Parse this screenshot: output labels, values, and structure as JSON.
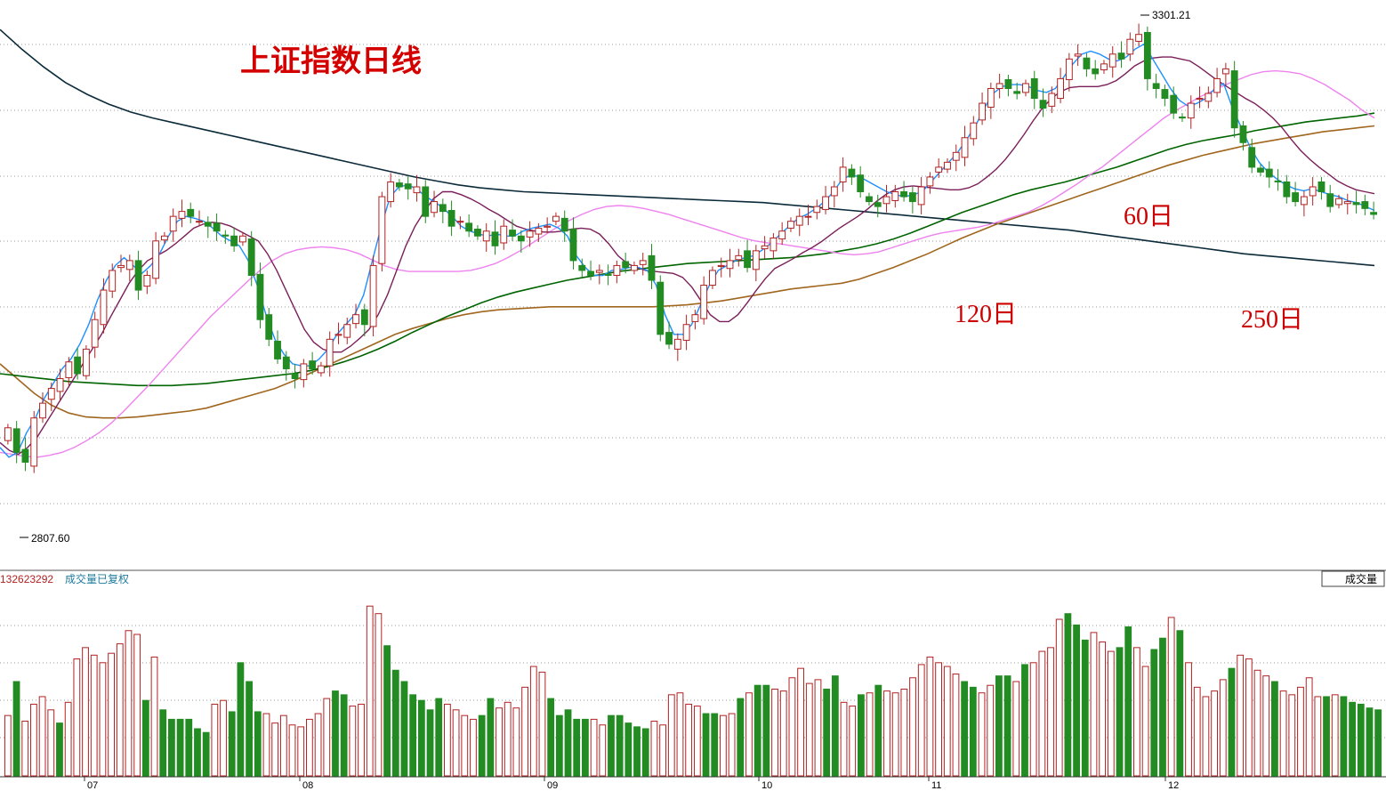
{
  "title": "上证指数日线",
  "volume_panel": {
    "value_readout": "132623292",
    "label": "成交量已复权",
    "button_label": "成交量"
  },
  "colors": {
    "up": "#b22222",
    "down": "#228b22",
    "ma5": "#1e90ff",
    "ma10": "#7b1f5a",
    "ma20": "#ee82ee",
    "ma60": "#006400",
    "ma120": "#a0661e",
    "ma250": "#0b2a3a",
    "annotation": "#cc0000"
  },
  "chart_data": {
    "type": "candlestick",
    "title": "上证指数日线",
    "x_ticks": [
      "07",
      "08",
      "09",
      "10",
      "11",
      "12"
    ],
    "ylim": [
      2760,
      3330
    ],
    "high_marker": {
      "label": "3301.21",
      "value": 3301.21
    },
    "low_marker": {
      "label": "2807.60",
      "value": 2807.6
    },
    "ma_labels": [
      {
        "text": "60日",
        "series": "ma60"
      },
      {
        "text": "120日",
        "series": "ma120"
      },
      {
        "text": "250日",
        "series": "ma250"
      }
    ],
    "candles_close": [
      2895,
      2870,
      2860,
      2905,
      2920,
      2935,
      2945,
      2962,
      2950,
      2975,
      3005,
      3035,
      3055,
      3060,
      3065,
      3035,
      3050,
      3085,
      3090,
      3110,
      3115,
      3110,
      3105,
      3100,
      3095,
      3090,
      3080,
      3090,
      3050,
      3005,
      2985,
      2965,
      2955,
      2945,
      2960,
      2955,
      2958,
      2985,
      2990,
      3000,
      3010,
      3000,
      3060,
      3130,
      3145,
      3140,
      3138,
      3140,
      3110,
      3125,
      3115,
      3100,
      3105,
      3095,
      3090,
      3095,
      3080,
      3100,
      3090,
      3085,
      3095,
      3098,
      3100,
      3110,
      3095,
      3065,
      3055,
      3050,
      3055,
      3050,
      3060,
      3058,
      3060,
      3065,
      3045,
      2990,
      2980,
      2985,
      3000,
      3010,
      3040,
      3055,
      3060,
      3065,
      3070,
      3058,
      3075,
      3080,
      3088,
      3095,
      3105,
      3110,
      3110,
      3120,
      3130,
      3140,
      3160,
      3150,
      3135,
      3125,
      3120,
      3130,
      3135,
      3130,
      3125,
      3140,
      3150,
      3160,
      3165,
      3175,
      3190,
      3205,
      3225,
      3240,
      3245,
      3240,
      3235,
      3245,
      3230,
      3220,
      3235,
      3250,
      3270,
      3275,
      3260,
      3255,
      3265,
      3275,
      3270,
      3290,
      3295,
      3250,
      3240,
      3230,
      3215,
      3210,
      3225,
      3230,
      3235,
      3250,
      3260,
      3200,
      3185,
      3160,
      3155,
      3150,
      3145,
      3130,
      3125,
      3130,
      3140,
      3135,
      3120,
      3128,
      3125,
      3122,
      3118,
      3112
    ],
    "ma5": [
      2875,
      2865,
      2870,
      2890,
      2905,
      2925,
      2940,
      2955,
      2965,
      2980,
      3000,
      3025,
      3045,
      3060,
      3068,
      3060,
      3052,
      3060,
      3072,
      3090,
      3105,
      3110,
      3108,
      3105,
      3098,
      3090,
      3085,
      3080,
      3065,
      3040,
      3010,
      2985,
      2970,
      2960,
      2958,
      2958,
      2965,
      2975,
      2990,
      3000,
      3010,
      3030,
      3065,
      3100,
      3130,
      3140,
      3142,
      3138,
      3130,
      3125,
      3118,
      3110,
      3100,
      3095,
      3092,
      3090,
      3092,
      3090,
      3090,
      3095,
      3098,
      3100,
      3102,
      3098,
      3090,
      3070,
      3058,
      3050,
      3050,
      3055,
      3056,
      3058,
      3058,
      3055,
      3040,
      3010,
      2990,
      2990,
      3000,
      3020,
      3040,
      3055,
      3060,
      3065,
      3068,
      3070,
      3076,
      3083,
      3092,
      3100,
      3108,
      3112,
      3118,
      3125,
      3135,
      3148,
      3152,
      3150,
      3145,
      3140,
      3135,
      3132,
      3130,
      3132,
      3135,
      3145,
      3155,
      3165,
      3175,
      3188,
      3202,
      3220,
      3235,
      3242,
      3244,
      3244,
      3242,
      3238,
      3236,
      3240,
      3252,
      3265,
      3275,
      3278,
      3275,
      3270,
      3268,
      3272,
      3280,
      3285,
      3270,
      3255,
      3240,
      3228,
      3222,
      3225,
      3230,
      3240,
      3245,
      3220,
      3200,
      3180,
      3165,
      3155,
      3148,
      3142,
      3138,
      3136,
      3138,
      3135,
      3132,
      3130,
      3126,
      3124,
      3120,
      3116
    ],
    "ma10": [
      2880,
      2872,
      2868,
      2875,
      2885,
      2900,
      2915,
      2930,
      2945,
      2960,
      2975,
      2990,
      3008,
      3025,
      3042,
      3055,
      3065,
      3070,
      3075,
      3082,
      3090,
      3098,
      3102,
      3104,
      3103,
      3100,
      3095,
      3090,
      3085,
      3072,
      3055,
      3035,
      3015,
      2995,
      2982,
      2975,
      2972,
      2972,
      2978,
      2986,
      2995,
      3010,
      3030,
      3055,
      3080,
      3100,
      3115,
      3128,
      3135,
      3135,
      3132,
      3128,
      3123,
      3117,
      3112,
      3106,
      3100,
      3097,
      3095,
      3094,
      3094,
      3095,
      3097,
      3098,
      3097,
      3092,
      3082,
      3070,
      3062,
      3058,
      3055,
      3054,
      3053,
      3052,
      3048,
      3038,
      3024,
      3010,
      3003,
      3003,
      3010,
      3022,
      3035,
      3047,
      3057,
      3062,
      3067,
      3073,
      3078,
      3084,
      3091,
      3098,
      3104,
      3110,
      3117,
      3125,
      3132,
      3137,
      3140,
      3141,
      3140,
      3139,
      3138,
      3137,
      3137,
      3139,
      3143,
      3150,
      3158,
      3168,
      3180,
      3193,
      3207,
      3220,
      3230,
      3237,
      3241,
      3242,
      3242,
      3242,
      3244,
      3248,
      3255,
      3263,
      3268,
      3271,
      3272,
      3272,
      3270,
      3268,
      3262,
      3255,
      3248,
      3242,
      3236,
      3230,
      3225,
      3218,
      3210,
      3200,
      3188,
      3177,
      3168,
      3160,
      3153,
      3146,
      3141,
      3137,
      3135,
      3133
    ],
    "ma20": [
      2870,
      2868,
      2866,
      2865,
      2867,
      2870,
      2875,
      2882,
      2890,
      2900,
      2912,
      2925,
      2938,
      2952,
      2966,
      2980,
      2994,
      3008,
      3020,
      3032,
      3044,
      3055,
      3065,
      3072,
      3076,
      3078,
      3079,
      3078,
      3076,
      3072,
      3066,
      3060,
      3056,
      3054,
      3054,
      3054,
      3054,
      3054,
      3055,
      3058,
      3062,
      3068,
      3075,
      3083,
      3091,
      3099,
      3106,
      3112,
      3117,
      3120,
      3121,
      3120,
      3118,
      3115,
      3112,
      3108,
      3104,
      3100,
      3096,
      3092,
      3088,
      3085,
      3083,
      3082,
      3080,
      3078,
      3076,
      3074,
      3072,
      3071,
      3072,
      3074,
      3078,
      3082,
      3086,
      3090,
      3093,
      3095,
      3097,
      3099,
      3102,
      3106,
      3110,
      3114,
      3120,
      3127,
      3135,
      3143,
      3152,
      3160,
      3170,
      3180,
      3190,
      3200,
      3210,
      3218,
      3225,
      3232,
      3238,
      3244,
      3249,
      3254,
      3257,
      3258,
      3257,
      3255,
      3250,
      3244,
      3236,
      3228,
      3218,
      3210
    ],
    "ma60": [
      2950,
      2948,
      2946,
      2944,
      2942,
      2941,
      2940,
      2939,
      2938,
      2938,
      2938,
      2939,
      2940,
      2942,
      2944,
      2946,
      2948,
      2950,
      2953,
      2957,
      2962,
      2968,
      2975,
      2983,
      2992,
      3000,
      3008,
      3015,
      3022,
      3028,
      3033,
      3037,
      3041,
      3045,
      3048,
      3051,
      3054,
      3056,
      3058,
      3060,
      3062,
      3063,
      3064,
      3065,
      3066,
      3067,
      3068,
      3070,
      3072,
      3075,
      3078,
      3082,
      3087,
      3093,
      3100,
      3107,
      3114,
      3120,
      3126,
      3132,
      3137,
      3141,
      3145,
      3150,
      3155,
      3160,
      3166,
      3172,
      3178,
      3183,
      3187,
      3190,
      3193,
      3197,
      3200,
      3203,
      3206,
      3208,
      3210,
      3212,
      3215
    ],
    "ma120": [
      2960,
      2945,
      2930,
      2918,
      2910,
      2906,
      2905,
      2905,
      2906,
      2908,
      2910,
      2912,
      2915,
      2920,
      2925,
      2930,
      2935,
      2942,
      2950,
      2958,
      2966,
      2974,
      2982,
      2990,
      2996,
      3001,
      3006,
      3010,
      3013,
      3015,
      3016,
      3017,
      3018,
      3018,
      3018,
      3018,
      3018,
      3018,
      3018,
      3019,
      3020,
      3022,
      3024,
      3027,
      3030,
      3033,
      3036,
      3038,
      3040,
      3042,
      3046,
      3052,
      3058,
      3065,
      3072,
      3080,
      3088,
      3095,
      3102,
      3108,
      3114,
      3120,
      3126,
      3132,
      3138,
      3144,
      3150,
      3156,
      3162,
      3167,
      3172,
      3176,
      3180,
      3184,
      3187,
      3190,
      3193,
      3196,
      3198,
      3200,
      3202
    ],
    "ma250": [
      3300,
      3280,
      3262,
      3246,
      3234,
      3224,
      3216,
      3210,
      3205,
      3200,
      3195,
      3190,
      3185,
      3180,
      3175,
      3170,
      3165,
      3160,
      3155,
      3150,
      3146,
      3142,
      3139,
      3137,
      3135,
      3134,
      3133,
      3132,
      3131,
      3130,
      3129,
      3128,
      3127,
      3126,
      3125,
      3124,
      3122,
      3120,
      3118,
      3116,
      3114,
      3112,
      3110,
      3108,
      3106,
      3104,
      3102,
      3100,
      3098,
      3096,
      3093,
      3090,
      3087,
      3084,
      3081,
      3078,
      3075,
      3072,
      3070,
      3068,
      3066,
      3064,
      3062,
      3060
    ]
  },
  "volume_data": {
    "volumes": [
      0.32,
      0.5,
      0.29,
      0.38,
      0.42,
      0.35,
      0.28,
      0.39,
      0.62,
      0.68,
      0.64,
      0.6,
      0.65,
      0.7,
      0.77,
      0.75,
      0.4,
      0.63,
      0.35,
      0.3,
      0.3,
      0.3,
      0.25,
      0.23,
      0.38,
      0.4,
      0.34,
      0.6,
      0.5,
      0.34,
      0.33,
      0.28,
      0.32,
      0.27,
      0.26,
      0.3,
      0.33,
      0.41,
      0.45,
      0.43,
      0.37,
      0.38,
      0.9,
      0.86,
      0.69,
      0.56,
      0.5,
      0.43,
      0.4,
      0.35,
      0.41,
      0.38,
      0.35,
      0.32,
      0.3,
      0.32,
      0.41,
      0.36,
      0.39,
      0.36,
      0.47,
      0.58,
      0.55,
      0.41,
      0.32,
      0.35,
      0.3,
      0.3,
      0.3,
      0.27,
      0.32,
      0.32,
      0.28,
      0.26,
      0.25,
      0.29,
      0.27,
      0.43,
      0.44,
      0.38,
      0.37,
      0.33,
      0.33,
      0.32,
      0.33,
      0.41,
      0.44,
      0.48,
      0.48,
      0.46,
      0.45,
      0.52,
      0.57,
      0.49,
      0.51,
      0.46,
      0.53,
      0.39,
      0.37,
      0.43,
      0.44,
      0.48,
      0.45,
      0.44,
      0.46,
      0.52,
      0.59,
      0.63,
      0.6,
      0.58,
      0.54,
      0.5,
      0.47,
      0.44,
      0.48,
      0.53,
      0.53,
      0.5,
      0.59,
      0.6,
      0.66,
      0.68,
      0.83,
      0.86,
      0.8,
      0.72,
      0.76,
      0.71,
      0.66,
      0.68,
      0.79,
      0.68,
      0.58,
      0.67,
      0.73,
      0.84,
      0.77,
      0.6,
      0.47,
      0.42,
      0.45,
      0.51,
      0.57,
      0.64,
      0.62,
      0.56,
      0.53,
      0.5,
      0.45,
      0.43,
      0.47,
      0.52,
      0.42,
      0.42,
      0.43,
      0.42,
      0.39,
      0.38,
      0.36,
      0.35
    ],
    "up_flags": [
      true,
      false,
      true,
      true,
      true,
      true,
      false,
      true,
      true,
      true,
      true,
      true,
      true,
      true,
      true,
      true,
      false,
      true,
      false,
      false,
      false,
      false,
      false,
      false,
      true,
      true,
      false,
      false,
      false,
      false,
      true,
      true,
      true,
      true,
      true,
      true,
      true,
      true,
      false,
      false,
      true,
      true,
      true,
      true,
      false,
      false,
      false,
      false,
      false,
      false,
      false,
      true,
      true,
      true,
      true,
      false,
      false,
      true,
      true,
      true,
      true,
      true,
      true,
      false,
      false,
      false,
      false,
      false,
      true,
      true,
      false,
      false,
      false,
      false,
      false,
      true,
      true,
      true,
      true,
      true,
      true,
      false,
      false,
      true,
      true,
      false,
      true,
      false,
      false,
      true,
      true,
      true,
      true,
      true,
      true,
      false,
      false,
      true,
      true,
      false,
      true,
      false,
      true,
      true,
      true,
      true,
      true,
      true,
      true,
      true,
      true,
      false,
      false,
      true,
      true,
      false,
      false,
      true,
      false,
      true,
      true,
      true,
      true,
      false,
      false,
      false,
      true,
      true,
      true,
      false,
      false,
      true,
      true,
      false,
      false,
      true,
      false,
      true,
      true,
      true,
      true,
      true,
      false,
      true,
      true,
      true,
      true,
      false,
      true,
      true,
      true,
      true,
      true,
      false,
      true,
      false
    ]
  }
}
